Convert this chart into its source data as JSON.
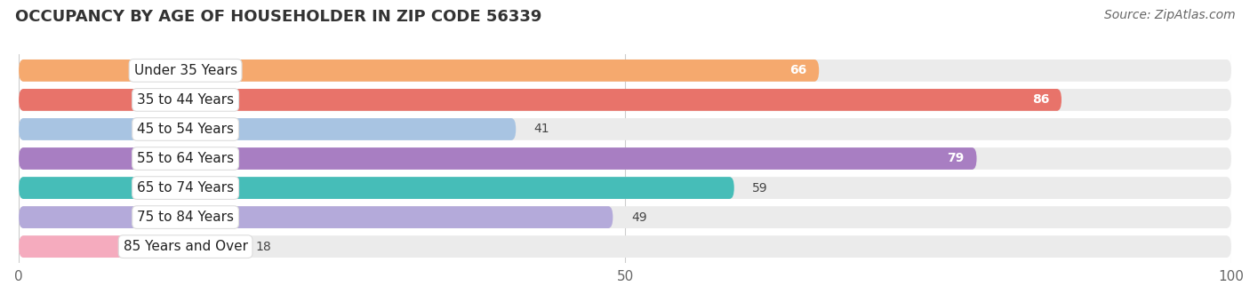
{
  "title": "OCCUPANCY BY AGE OF HOUSEHOLDER IN ZIP CODE 56339",
  "source": "Source: ZipAtlas.com",
  "categories": [
    "Under 35 Years",
    "35 to 44 Years",
    "45 to 54 Years",
    "55 to 64 Years",
    "65 to 74 Years",
    "75 to 84 Years",
    "85 Years and Over"
  ],
  "values": [
    66,
    86,
    41,
    79,
    59,
    49,
    18
  ],
  "bar_colors": [
    "#F5A96E",
    "#E8736A",
    "#A8C4E2",
    "#A87EC2",
    "#46BDB8",
    "#B4AADA",
    "#F5ABBE"
  ],
  "bar_bg_color": "#EBEBEB",
  "xlim_data": [
    0,
    100
  ],
  "title_fontsize": 13,
  "source_fontsize": 10,
  "tick_fontsize": 11,
  "label_fontsize": 11,
  "value_fontsize": 10,
  "figsize": [
    14.06,
    3.4
  ],
  "dpi": 100
}
